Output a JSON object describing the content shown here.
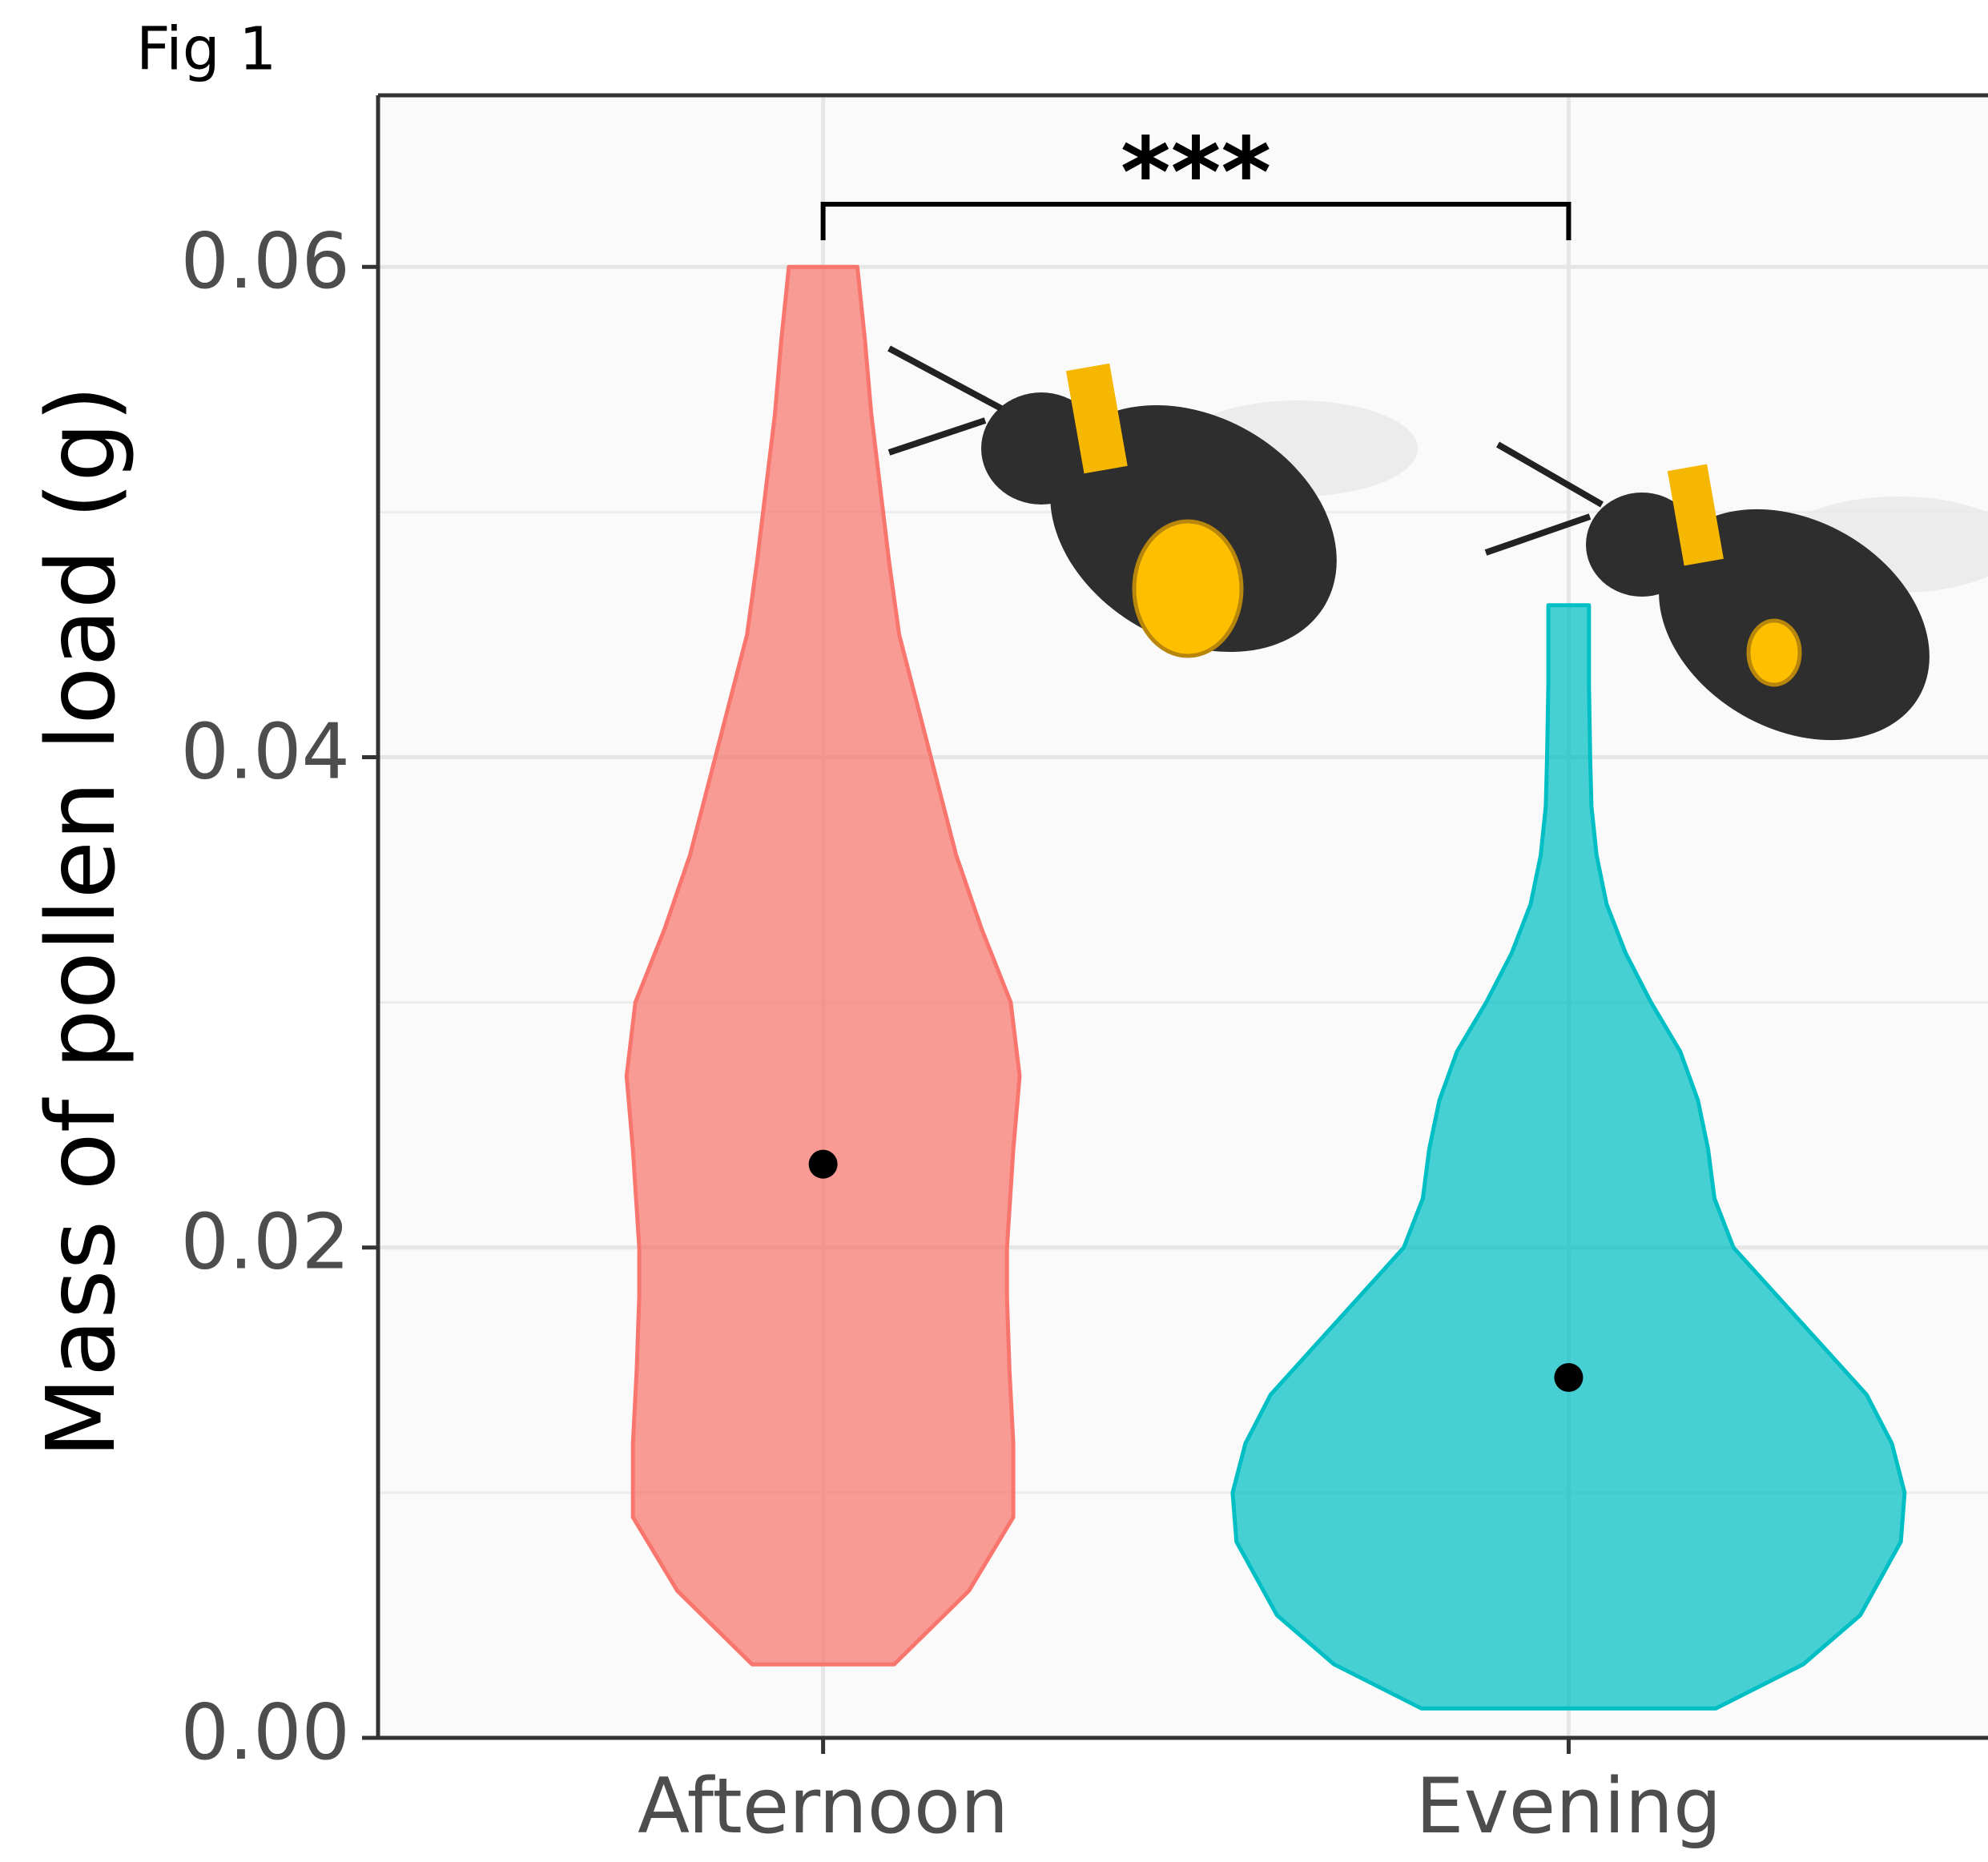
{
  "chart_data": {
    "type": "violin",
    "figure_label": "Fig 1",
    "y_label": "Mass of pollen load (g)",
    "annotation": "***",
    "categories": [
      "Afternoon",
      "Evening"
    ],
    "series": [
      {
        "name": "Afternoon",
        "color": "#f8766d",
        "y": [
          0.003,
          0.006,
          0.009,
          0.012,
          0.015,
          0.018,
          0.02,
          0.024,
          0.027,
          0.03,
          0.033,
          0.036,
          0.039,
          0.042,
          0.045,
          0.048,
          0.051,
          0.054,
          0.057,
          0.06
        ],
        "density": [
          0.56,
          1.15,
          1.5,
          1.5,
          1.47,
          1.45,
          1.45,
          1.5,
          1.55,
          1.48,
          1.25,
          1.05,
          0.9,
          0.75,
          0.6,
          0.52,
          0.45,
          0.38,
          0.33,
          0.27
        ],
        "point": 0.0234
      },
      {
        "name": "Evening",
        "color": "#00bfc4",
        "y": [
          0.0012,
          0.003,
          0.005,
          0.008,
          0.01,
          0.012,
          0.014,
          0.016,
          0.018,
          0.02,
          0.022,
          0.024,
          0.026,
          0.028,
          0.03,
          0.032,
          0.034,
          0.036,
          0.038,
          0.04,
          0.043,
          0.0462
        ],
        "density": [
          1.16,
          1.85,
          2.3,
          2.62,
          2.65,
          2.55,
          2.35,
          2.0,
          1.65,
          1.3,
          1.15,
          1.1,
          1.02,
          0.88,
          0.65,
          0.45,
          0.3,
          0.22,
          0.18,
          0.17,
          0.16,
          0.16
        ],
        "point": 0.0147
      }
    ],
    "ylim": [
      0,
      0.067
    ],
    "yticks": [
      {
        "value": 0,
        "label": "0.00"
      },
      0.02,
      0.04,
      0.06
    ],
    "minor_grid": [
      0.01,
      0.03,
      0.05
    ],
    "grid": true
  }
}
